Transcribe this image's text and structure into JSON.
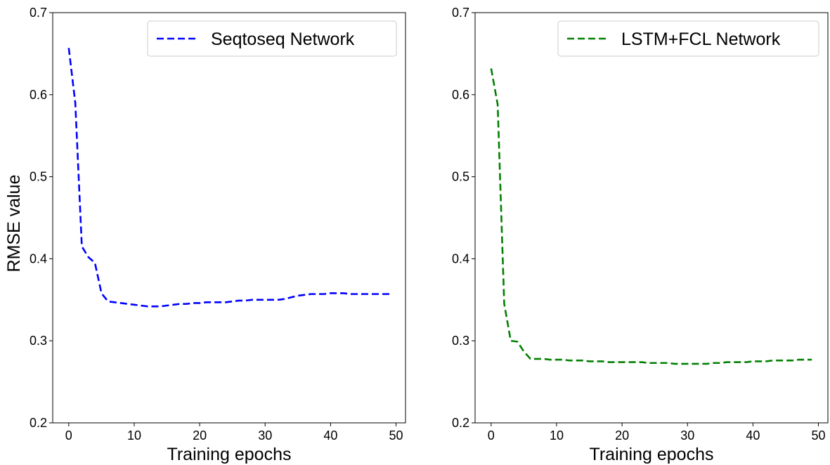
{
  "chart_data": [
    {
      "type": "line",
      "xlabel": "Training epochs",
      "ylabel": "RMSE value",
      "xlim": [
        -2.45,
        51.45
      ],
      "ylim": [
        0.2,
        0.7
      ],
      "xticks": [
        0,
        10,
        20,
        30,
        40,
        50
      ],
      "yticks": [
        0.2,
        0.3,
        0.4,
        0.5,
        0.6,
        0.7
      ],
      "ytick_labels": [
        "0.2",
        "0.3",
        "0.4",
        "0.5",
        "0.6",
        "0.7"
      ],
      "grid": false,
      "legend_position": "top-right",
      "series": [
        {
          "name": "Seqtoseq Network",
          "color": "#0000ff",
          "line_style": "dashed",
          "x": [
            0,
            1,
            2,
            3,
            4,
            5,
            6,
            7,
            8,
            9,
            10,
            11,
            12,
            13,
            14,
            15,
            16,
            17,
            18,
            19,
            20,
            21,
            22,
            23,
            24,
            25,
            26,
            27,
            28,
            29,
            30,
            31,
            32,
            33,
            34,
            35,
            36,
            37,
            38,
            39,
            40,
            41,
            42,
            43,
            44,
            45,
            46,
            47,
            48,
            49
          ],
          "y": [
            0.657,
            0.59,
            0.415,
            0.402,
            0.395,
            0.358,
            0.348,
            0.347,
            0.346,
            0.345,
            0.344,
            0.343,
            0.342,
            0.342,
            0.342,
            0.343,
            0.344,
            0.345,
            0.345,
            0.346,
            0.346,
            0.347,
            0.347,
            0.347,
            0.347,
            0.348,
            0.349,
            0.349,
            0.35,
            0.35,
            0.35,
            0.35,
            0.35,
            0.351,
            0.353,
            0.355,
            0.356,
            0.357,
            0.357,
            0.357,
            0.358,
            0.358,
            0.358,
            0.357,
            0.357,
            0.357,
            0.357,
            0.357,
            0.357,
            0.357
          ]
        }
      ]
    },
    {
      "type": "line",
      "xlabel": "Training epochs",
      "ylabel": "",
      "xlim": [
        -2.45,
        51.45
      ],
      "ylim": [
        0.2,
        0.7
      ],
      "xticks": [
        0,
        10,
        20,
        30,
        40,
        50
      ],
      "yticks": [
        0.2,
        0.3,
        0.4,
        0.5,
        0.6,
        0.7
      ],
      "ytick_labels": [
        "0.2",
        "0.3",
        "0.4",
        "0.5",
        "0.6",
        "0.7"
      ],
      "grid": false,
      "legend_position": "top-right",
      "series": [
        {
          "name": "LSTM+FCL Network",
          "color": "#008000",
          "line_style": "dashed",
          "x": [
            0,
            1,
            2,
            3,
            4,
            5,
            6,
            7,
            8,
            9,
            10,
            11,
            12,
            13,
            14,
            15,
            16,
            17,
            18,
            19,
            20,
            21,
            22,
            23,
            24,
            25,
            26,
            27,
            28,
            29,
            30,
            31,
            32,
            33,
            34,
            35,
            36,
            37,
            38,
            39,
            40,
            41,
            42,
            43,
            44,
            45,
            46,
            47,
            48,
            49
          ],
          "y": [
            0.632,
            0.588,
            0.345,
            0.3,
            0.299,
            0.287,
            0.278,
            0.278,
            0.278,
            0.277,
            0.277,
            0.277,
            0.276,
            0.276,
            0.276,
            0.275,
            0.275,
            0.275,
            0.274,
            0.274,
            0.274,
            0.274,
            0.274,
            0.274,
            0.273,
            0.273,
            0.273,
            0.273,
            0.272,
            0.272,
            0.272,
            0.272,
            0.272,
            0.272,
            0.273,
            0.273,
            0.274,
            0.274,
            0.274,
            0.274,
            0.275,
            0.275,
            0.275,
            0.276,
            0.276,
            0.276,
            0.276,
            0.277,
            0.277,
            0.277
          ]
        }
      ]
    }
  ]
}
